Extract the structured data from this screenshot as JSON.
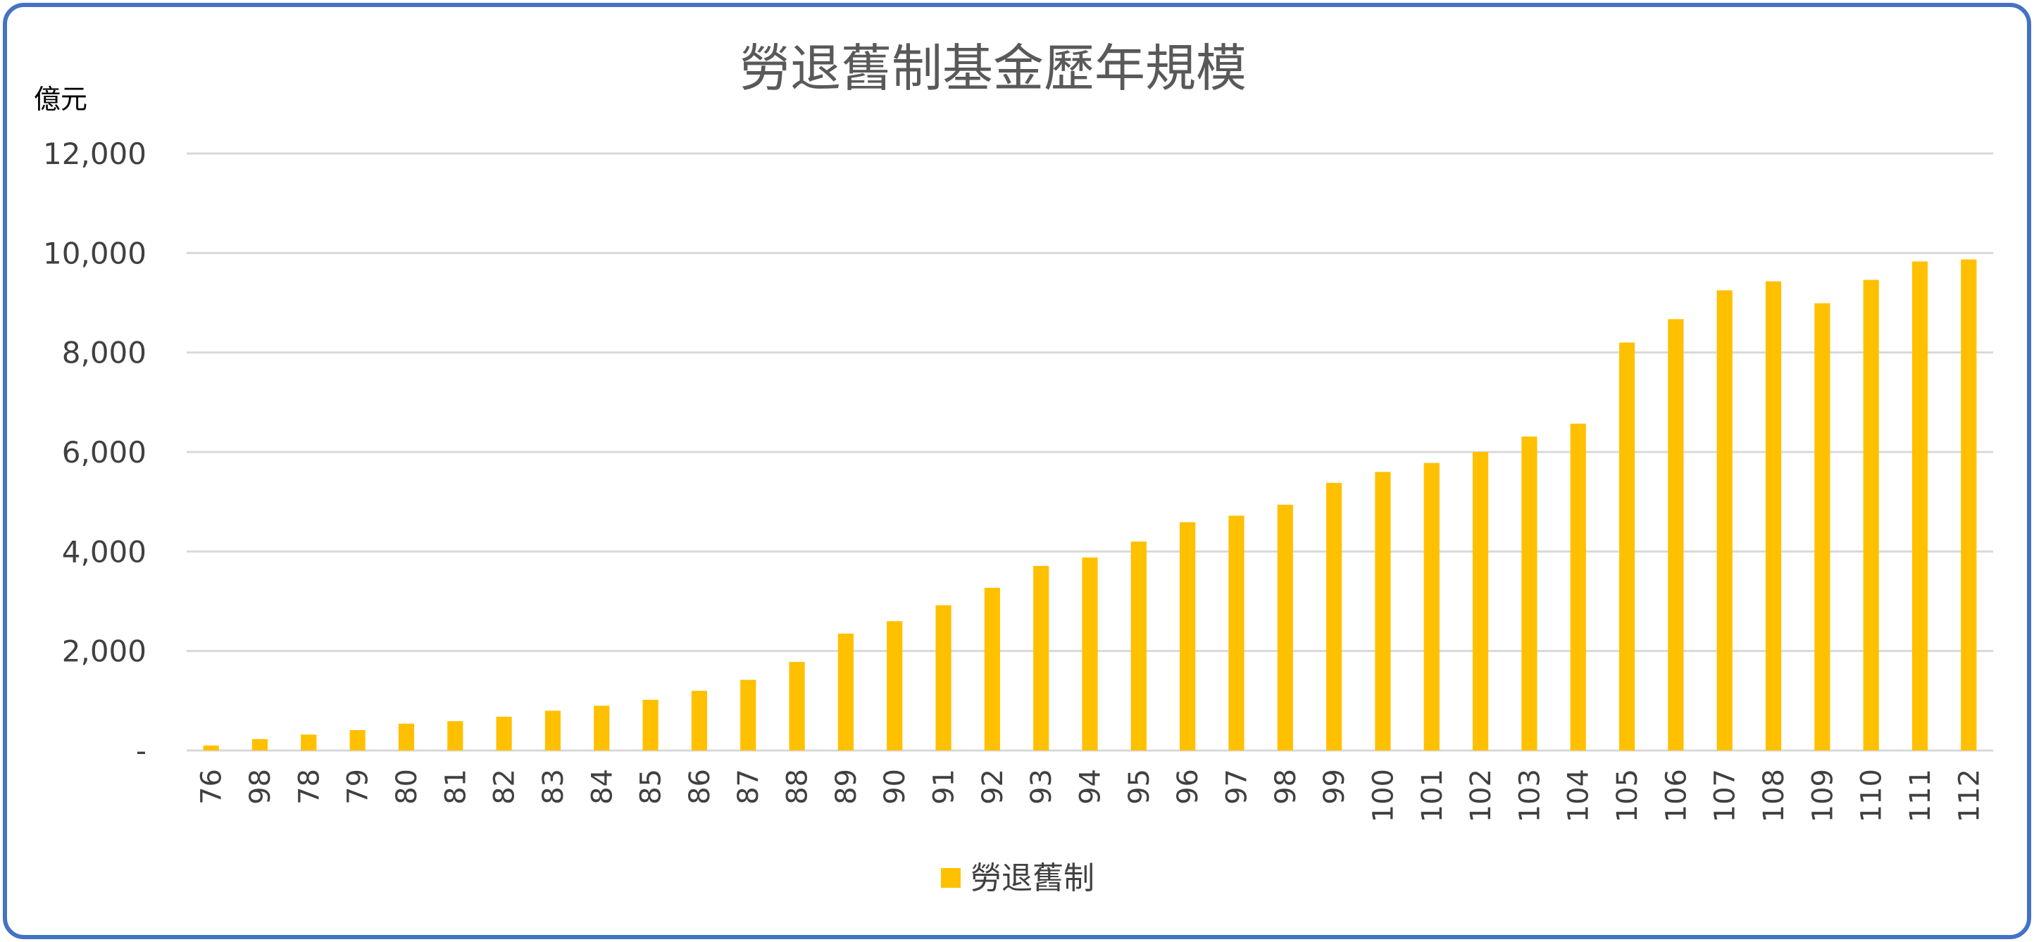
{
  "chart_data": {
    "type": "bar",
    "title": "勞退舊制基金歷年規模",
    "ylabel": "億元",
    "xlabel": "",
    "ylim": [
      0,
      12000
    ],
    "yticks": [
      0,
      2000,
      4000,
      6000,
      8000,
      10000,
      12000
    ],
    "ytick_labels": [
      "-",
      "2,000",
      "4,000",
      "6,000",
      "8,000",
      "10,000",
      "12,000"
    ],
    "grid": true,
    "legend_position": "bottom",
    "colors": {
      "series": "#FFC000",
      "grid": "#D9D9D9",
      "border": "#4472C4"
    },
    "categories": [
      "76",
      "98",
      "78",
      "79",
      "80",
      "81",
      "82",
      "83",
      "84",
      "85",
      "86",
      "87",
      "88",
      "89",
      "90",
      "91",
      "92",
      "93",
      "94",
      "95",
      "96",
      "97",
      "98",
      "99",
      "100",
      "101",
      "102",
      "103",
      "104",
      "105",
      "106",
      "107",
      "108",
      "109",
      "110",
      "111",
      "112"
    ],
    "series": [
      {
        "name": "勞退舊制",
        "values": [
          100,
          230,
          320,
          410,
          540,
          590,
          680,
          800,
          900,
          1020,
          1200,
          1420,
          1780,
          2350,
          2600,
          2920,
          3270,
          3710,
          3880,
          4200,
          4590,
          4720,
          4940,
          5380,
          5600,
          5780,
          6000,
          6310,
          6570,
          8200,
          8670,
          9250,
          9430,
          8990,
          9460,
          9830,
          9870
        ]
      }
    ]
  }
}
